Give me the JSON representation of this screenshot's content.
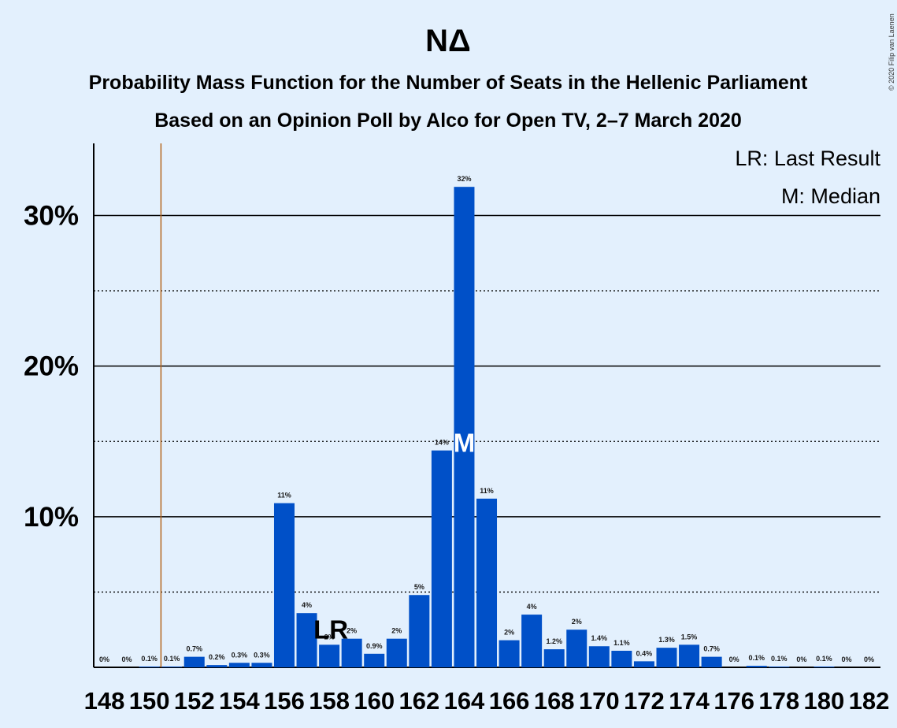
{
  "chart_data": {
    "type": "bar",
    "title": "ΝΔ",
    "subtitle_lines": [
      "Probability Mass Function for the Number of Seats in the Hellenic Parliament",
      "Based on an Opinion Poll by Alco for Open TV, 2–7 March 2020"
    ],
    "copyright": "© 2020 Filip van Laenen",
    "legend": [
      "LR: Last Result",
      "M: Median"
    ],
    "legend_placement": "top-right",
    "xlabel": "",
    "ylabel": "",
    "ylim": [
      0,
      35
    ],
    "y_ticks": [
      {
        "value": 10,
        "label": "10%"
      },
      {
        "value": 20,
        "label": "20%"
      },
      {
        "value": 30,
        "label": "30%"
      }
    ],
    "y_dotted_lines": [
      5,
      15,
      25
    ],
    "x_tick_labels": [
      "148",
      "150",
      "152",
      "154",
      "156",
      "158",
      "160",
      "162",
      "164",
      "166",
      "168",
      "170",
      "172",
      "174",
      "176",
      "178",
      "180",
      "182"
    ],
    "categories": [
      148,
      149,
      150,
      151,
      152,
      153,
      154,
      155,
      156,
      157,
      158,
      159,
      160,
      161,
      162,
      163,
      164,
      165,
      166,
      167,
      168,
      169,
      170,
      171,
      172,
      173,
      174,
      175,
      176,
      177,
      178,
      179,
      180,
      181,
      182
    ],
    "values": [
      0,
      0,
      0.05,
      0.05,
      0.7,
      0.15,
      0.3,
      0.3,
      10.9,
      3.6,
      1.5,
      1.9,
      0.9,
      1.9,
      4.8,
      14.4,
      31.9,
      11.2,
      1.8,
      3.5,
      1.2,
      2.5,
      1.4,
      1.1,
      0.4,
      1.3,
      1.5,
      0.7,
      0,
      0.1,
      0.05,
      0,
      0.05,
      0,
      0
    ],
    "value_labels": [
      "0%",
      "0%",
      "0.1%",
      "0.1%",
      "0.7%",
      "0.2%",
      "0.3%",
      "0.3%",
      "11%",
      "4%",
      "2%",
      "2%",
      "0.9%",
      "2%",
      "5%",
      "14%",
      "32%",
      "11%",
      "2%",
      "4%",
      "1.2%",
      "2%",
      "1.4%",
      "1.1%",
      "0.4%",
      "1.3%",
      "1.5%",
      "0.7%",
      "0%",
      "0.1%",
      "0.1%",
      "0%",
      "0.1%",
      "0%",
      "0%"
    ],
    "last_result": {
      "seat": 151,
      "label": "LR",
      "label_at_seat": 158
    },
    "median": {
      "seat": 164,
      "label": "M"
    },
    "grid": true,
    "colors": {
      "bar": "#0050c8",
      "last_result_line": "#b5651d",
      "background": "#e3f0fd",
      "gridline": "#000000"
    }
  }
}
